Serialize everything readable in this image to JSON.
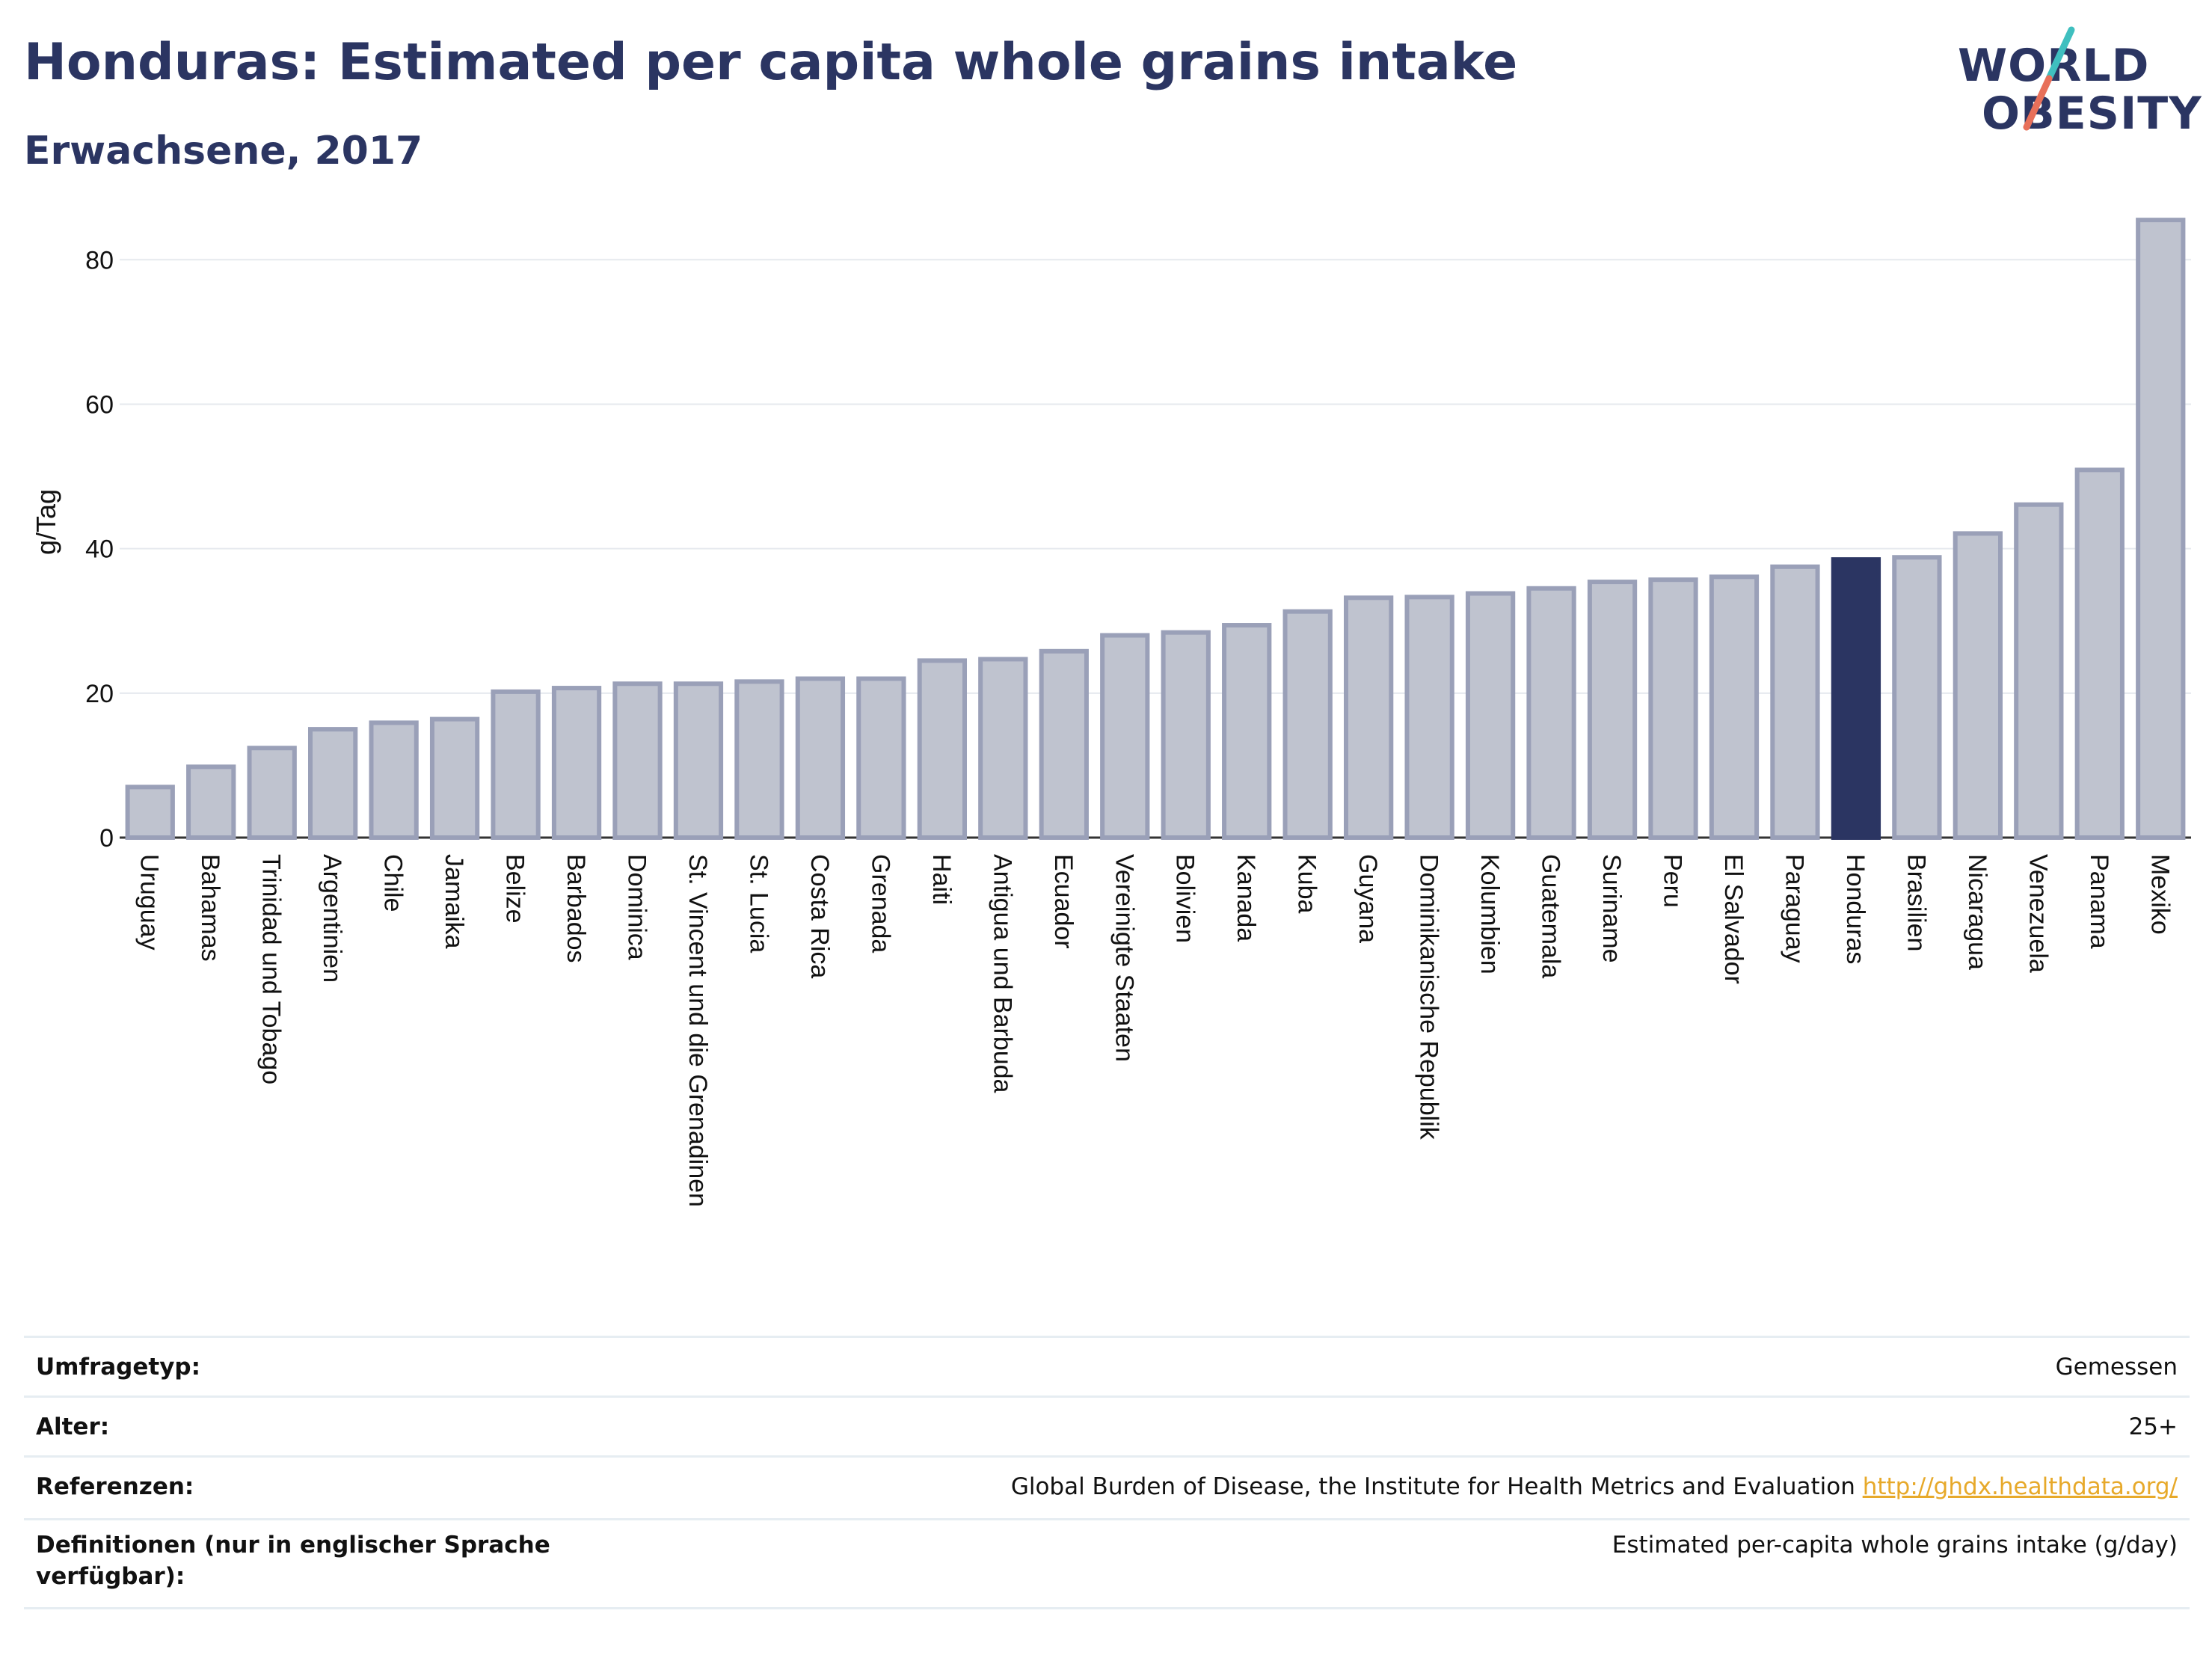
{
  "header": {
    "title": "Honduras: Estimated per capita whole grains intake",
    "subtitle": "Erwachsene, 2017"
  },
  "logo": {
    "line1": "WORLD",
    "line2": "OBESITY",
    "colors": {
      "text": "#2b3562",
      "slash_top": "#3fbfbf",
      "slash_bottom": "#e8705a"
    }
  },
  "chart_data": {
    "type": "bar",
    "ylabel": "g/Tag",
    "ylim": [
      0,
      88
    ],
    "yticks": [
      0,
      20,
      40,
      60,
      80
    ],
    "grid": true,
    "highlight": "Honduras",
    "colors": {
      "bar": "#bfc3cf",
      "bar_border": "#9aa0b8",
      "highlight": "#2b3562",
      "grid": "#e6e9ee"
    },
    "categories": [
      "Uruguay",
      "Bahamas",
      "Trinidad und Tobago",
      "Argentinien",
      "Chile",
      "Jamaika",
      "Belize",
      "Barbados",
      "Dominica",
      "St. Vincent und die Grenadinen",
      "St. Lucia",
      "Costa Rica",
      "Grenada",
      "Haiti",
      "Antigua und Barbuda",
      "Ecuador",
      "Vereinigte Staaten",
      "Bolivien",
      "Kanada",
      "Kuba",
      "Guyana",
      "Dominikanische Republik",
      "Kolumbien",
      "Guatemala",
      "Suriname",
      "Peru",
      "El Salvador",
      "Paraguay",
      "Honduras",
      "Brasilien",
      "Nicaragua",
      "Venezuela",
      "Panama",
      "Mexiko"
    ],
    "values": [
      7.0,
      9.8,
      12.4,
      15.0,
      15.9,
      16.4,
      20.2,
      20.7,
      21.3,
      21.3,
      21.6,
      22.0,
      22.0,
      24.5,
      24.7,
      25.8,
      28.0,
      28.4,
      29.4,
      31.3,
      33.2,
      33.3,
      33.8,
      34.5,
      35.4,
      35.7,
      36.1,
      37.5,
      38.5,
      38.8,
      42.1,
      46.1,
      50.9,
      85.5
    ]
  },
  "info": [
    {
      "label": "Umfragetyp:",
      "value": "Gemessen",
      "link": ""
    },
    {
      "label": "Alter:",
      "value": "25+",
      "link": ""
    },
    {
      "label": "Referenzen:",
      "value": "Global Burden of Disease, the Institute for Health Metrics and Evaluation",
      "link": "http://ghdx.healthdata.org/"
    },
    {
      "label": "Definitionen (nur in englischer Sprache verfügbar):",
      "value": "Estimated per-capita whole grains intake (g/day)",
      "link": ""
    }
  ]
}
